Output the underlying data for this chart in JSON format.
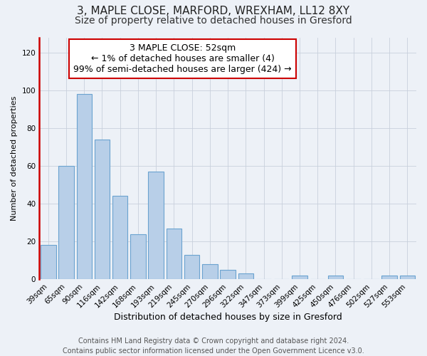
{
  "title": "3, MAPLE CLOSE, MARFORD, WREXHAM, LL12 8XY",
  "subtitle": "Size of property relative to detached houses in Gresford",
  "xlabel": "Distribution of detached houses by size in Gresford",
  "ylabel": "Number of detached properties",
  "bar_labels": [
    "39sqm",
    "65sqm",
    "90sqm",
    "116sqm",
    "142sqm",
    "168sqm",
    "193sqm",
    "219sqm",
    "245sqm",
    "270sqm",
    "296sqm",
    "322sqm",
    "347sqm",
    "373sqm",
    "399sqm",
    "425sqm",
    "450sqm",
    "476sqm",
    "502sqm",
    "527sqm",
    "553sqm"
  ],
  "bar_values": [
    18,
    60,
    98,
    74,
    44,
    24,
    57,
    27,
    13,
    8,
    5,
    3,
    0,
    0,
    2,
    0,
    2,
    0,
    0,
    2,
    2
  ],
  "bar_color": "#b8cfe8",
  "bar_edge_color": "#6ba3d0",
  "highlight_color": "#cc0000",
  "annotation_line1": "3 MAPLE CLOSE: 52sqm",
  "annotation_line2": "← 1% of detached houses are smaller (4)",
  "annotation_line3": "99% of semi-detached houses are larger (424) →",
  "ylim": [
    0,
    128
  ],
  "yticks": [
    0,
    20,
    40,
    60,
    80,
    100,
    120
  ],
  "footer_line1": "Contains HM Land Registry data © Crown copyright and database right 2024.",
  "footer_line2": "Contains public sector information licensed under the Open Government Licence v3.0.",
  "bg_color": "#edf1f7",
  "plot_bg_color": "#edf1f7",
  "title_fontsize": 11,
  "subtitle_fontsize": 10,
  "xlabel_fontsize": 9,
  "ylabel_fontsize": 8,
  "tick_fontsize": 7.5,
  "annotation_fontsize": 9,
  "footer_fontsize": 7
}
